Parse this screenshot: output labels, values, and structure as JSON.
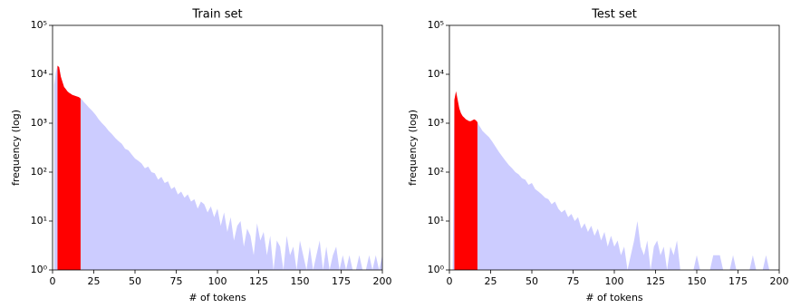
{
  "chart_data": [
    {
      "type": "area",
      "title": "Train set",
      "xlabel": "# of tokens",
      "ylabel": "frequency (log)",
      "x": [
        1,
        2,
        3,
        4,
        5,
        6,
        7,
        8,
        9,
        10,
        11,
        12,
        13,
        14,
        15,
        16,
        17,
        18,
        19,
        20,
        22,
        24,
        26,
        28,
        30,
        32,
        34,
        36,
        38,
        40,
        42,
        44,
        46,
        48,
        50,
        52,
        54,
        56,
        58,
        60,
        62,
        64,
        66,
        68,
        70,
        72,
        74,
        76,
        78,
        80,
        82,
        84,
        86,
        88,
        90,
        92,
        94,
        96,
        98,
        100,
        102,
        104,
        106,
        108,
        110,
        112,
        114,
        116,
        118,
        120,
        122,
        124,
        126,
        128,
        130,
        132,
        134,
        136,
        138,
        140,
        142,
        144,
        146,
        148,
        150,
        152,
        154,
        156,
        158,
        160,
        162,
        164,
        166,
        168,
        170,
        172,
        174,
        176,
        178,
        180,
        182,
        184,
        186,
        188,
        190,
        192,
        194,
        196,
        198,
        200
      ],
      "values": [
        6000,
        11000,
        15000,
        14000,
        9000,
        7000,
        5500,
        5000,
        4500,
        4200,
        4000,
        3800,
        3700,
        3600,
        3500,
        3400,
        3200,
        3000,
        2700,
        2500,
        2100,
        1800,
        1500,
        1200,
        1000,
        850,
        700,
        600,
        500,
        430,
        380,
        300,
        280,
        230,
        190,
        170,
        150,
        120,
        130,
        100,
        95,
        70,
        80,
        60,
        65,
        45,
        50,
        35,
        40,
        30,
        35,
        25,
        28,
        18,
        25,
        22,
        15,
        20,
        12,
        18,
        8,
        15,
        6,
        12,
        4,
        8,
        10,
        3,
        7,
        5,
        2,
        9,
        4,
        6,
        2,
        5,
        1,
        4,
        3,
        1,
        5,
        2,
        3,
        1,
        4,
        2,
        1,
        3,
        1,
        2,
        4,
        1,
        3,
        1,
        2,
        3,
        1,
        2,
        1,
        2,
        1,
        1,
        2,
        1,
        1,
        2,
        1,
        2,
        1,
        2
      ],
      "color": "#ccccff",
      "highlight": {
        "range": [
          3,
          17
        ],
        "color": "#ff0000"
      },
      "xlim": [
        0,
        200
      ],
      "xticks": [
        0,
        25,
        50,
        75,
        100,
        125,
        150,
        175,
        200
      ],
      "ylim": [
        1,
        100000
      ],
      "log_y": true,
      "yticks": [
        {
          "value": 1,
          "label": "10⁰"
        },
        {
          "value": 10,
          "label": "10¹"
        },
        {
          "value": 100,
          "label": "10²"
        },
        {
          "value": 1000,
          "label": "10³"
        },
        {
          "value": 10000,
          "label": "10⁴"
        },
        {
          "value": 100000,
          "label": "10⁵"
        }
      ]
    },
    {
      "type": "area",
      "title": "Test set",
      "xlabel": "# of tokens",
      "ylabel": "frequency (log)",
      "x": [
        1,
        2,
        3,
        4,
        5,
        6,
        7,
        8,
        9,
        10,
        11,
        12,
        13,
        14,
        15,
        16,
        17,
        18,
        19,
        20,
        22,
        24,
        26,
        28,
        30,
        32,
        34,
        36,
        38,
        40,
        42,
        44,
        46,
        48,
        50,
        52,
        54,
        56,
        58,
        60,
        62,
        64,
        66,
        68,
        70,
        72,
        74,
        76,
        78,
        80,
        82,
        84,
        86,
        88,
        90,
        92,
        94,
        96,
        98,
        100,
        102,
        104,
        106,
        108,
        110,
        112,
        114,
        116,
        118,
        120,
        122,
        124,
        126,
        128,
        130,
        132,
        134,
        136,
        138,
        140,
        142,
        144,
        146,
        148,
        150,
        152,
        154,
        156,
        158,
        160,
        162,
        164,
        166,
        168,
        170,
        172,
        174,
        176,
        178,
        180,
        182,
        184,
        186,
        188,
        190,
        192,
        194,
        196,
        198,
        200
      ],
      "values": [
        1,
        1,
        3000,
        4500,
        3000,
        2000,
        1600,
        1400,
        1300,
        1200,
        1150,
        1100,
        1100,
        1150,
        1200,
        1150,
        1050,
        900,
        800,
        700,
        600,
        520,
        420,
        330,
        260,
        210,
        170,
        140,
        120,
        100,
        90,
        75,
        70,
        55,
        60,
        45,
        40,
        35,
        30,
        28,
        22,
        25,
        18,
        15,
        17,
        12,
        14,
        10,
        12,
        7,
        9,
        6,
        8,
        5,
        7,
        4,
        6,
        3,
        5,
        3,
        4,
        2,
        3,
        1,
        2,
        4,
        10,
        3,
        2,
        4,
        1,
        3,
        4,
        2,
        3,
        1,
        3,
        2,
        4,
        1,
        1,
        1,
        1,
        1,
        2,
        1,
        1,
        1,
        1,
        2,
        2,
        2,
        1,
        1,
        1,
        2,
        1,
        1,
        1,
        1,
        1,
        2,
        1,
        1,
        1,
        2,
        1,
        1,
        1,
        1
      ],
      "color": "#ccccff",
      "highlight": {
        "range": [
          3,
          17
        ],
        "color": "#ff0000"
      },
      "xlim": [
        0,
        200
      ],
      "xticks": [
        0,
        25,
        50,
        75,
        100,
        125,
        150,
        175,
        200
      ],
      "ylim": [
        1,
        100000
      ],
      "log_y": true,
      "yticks": [
        {
          "value": 1,
          "label": "10⁰"
        },
        {
          "value": 10,
          "label": "10¹"
        },
        {
          "value": 100,
          "label": "10²"
        },
        {
          "value": 1000,
          "label": "10³"
        },
        {
          "value": 10000,
          "label": "10⁴"
        },
        {
          "value": 100000,
          "label": "10⁵"
        }
      ]
    }
  ]
}
